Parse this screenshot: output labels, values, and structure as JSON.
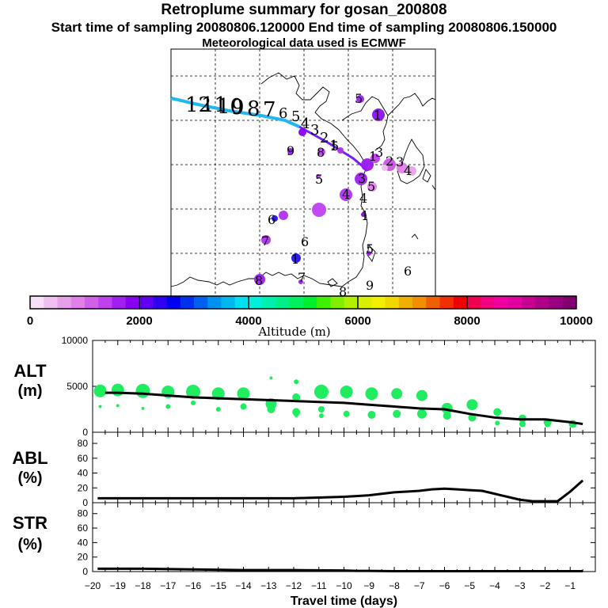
{
  "header": {
    "title": "Retroplume summary for gosan_200808",
    "line2": "Start time of sampling 20080806.120000     End time of sampling 20080806.150000",
    "line3": "Meteorological data used is ECMWF"
  },
  "colorbar": {
    "ticks": [
      "0",
      "2000",
      "4000",
      "6000",
      "8000",
      "10000"
    ],
    "label": "Altitude (m)",
    "colors": [
      "#f7e0f7",
      "#f0c0f0",
      "#e8a0e8",
      "#e080e8",
      "#d060e8",
      "#c040f0",
      "#a020f0",
      "#8800f0",
      "#6000f0",
      "#3000f0",
      "#0000f0",
      "#0030f0",
      "#0060f0",
      "#0090f0",
      "#00b8f0",
      "#00e0f0",
      "#00f0d8",
      "#00f0b0",
      "#00f088",
      "#00f060",
      "#00f030",
      "#40f000",
      "#80f000",
      "#b0f000",
      "#d8f000",
      "#f0f000",
      "#f0d800",
      "#f0b000",
      "#f09000",
      "#f06000",
      "#f03000",
      "#f00000",
      "#f00050",
      "#f00080",
      "#f000a0",
      "#e000a0",
      "#c80090",
      "#b00088",
      "#980080",
      "#800070"
    ]
  },
  "map": {
    "track_labels": [
      "12",
      "11",
      "10",
      "9",
      "8",
      "7",
      "6",
      "5",
      "4",
      "3",
      "2",
      "1"
    ],
    "cluster_labels": [
      "5",
      "1",
      "9",
      "8",
      "5",
      "3",
      "2",
      "3",
      "4",
      "1",
      "3",
      "5",
      "4",
      "4",
      "5",
      "1",
      "6",
      "7",
      "6",
      "1",
      "8",
      "7",
      "5",
      "9",
      "6",
      "8"
    ]
  },
  "panels": {
    "alt": {
      "label1": "ALT",
      "label2": "(m)",
      "ticks": [
        "10000",
        "5000",
        "0"
      ]
    },
    "abl": {
      "label1": "ABL",
      "label2": "(%)",
      "ticks": [
        "80",
        "60",
        "40",
        "20",
        "0"
      ]
    },
    "str": {
      "label1": "STR",
      "label2": "(%)",
      "ticks": [
        "80",
        "60",
        "40",
        "20",
        "0"
      ]
    },
    "xticks": [
      "−20",
      "−19",
      "−18",
      "−17",
      "−16",
      "−15",
      "−14",
      "−13",
      "−12",
      "−11",
      "−10",
      "−9",
      "−8",
      "−7",
      "−6",
      "−5",
      "−4",
      "−3",
      "−2",
      "−1"
    ],
    "xlabel": "Travel time (days)"
  },
  "chart_data": [
    {
      "type": "line",
      "name": "ALT",
      "ylabel": "ALT (m)",
      "xlabel": "Travel time (days)",
      "xlim": [
        -20,
        0
      ],
      "ylim": [
        0,
        10000
      ],
      "x": [
        -19.5,
        -19,
        -18,
        -17,
        -16,
        -15,
        -14,
        -13,
        -12,
        -11,
        -10,
        -9,
        -8,
        -7,
        -6,
        -5,
        -4,
        -3,
        -2,
        -1,
        -0.5
      ],
      "values": [
        4300,
        4300,
        4200,
        4000,
        3800,
        3700,
        3600,
        3500,
        3400,
        3300,
        3200,
        3000,
        2800,
        2600,
        2500,
        2000,
        1600,
        1400,
        1400,
        1100,
        900
      ],
      "scatter_color": "#20ec60",
      "cluster_points": [
        {
          "x": -19.7,
          "y": 4500,
          "s": 8
        },
        {
          "x": -19,
          "y": 4600,
          "s": 8
        },
        {
          "x": -18,
          "y": 4500,
          "s": 9
        },
        {
          "x": -17,
          "y": 4400,
          "s": 8
        },
        {
          "x": -16,
          "y": 4400,
          "s": 9
        },
        {
          "x": -15,
          "y": 4200,
          "s": 8
        },
        {
          "x": -14,
          "y": 4200,
          "s": 8
        },
        {
          "x": -12.9,
          "y": 3100,
          "s": 7
        },
        {
          "x": -11.9,
          "y": 3800,
          "s": 5
        },
        {
          "x": -10.9,
          "y": 4400,
          "s": 9
        },
        {
          "x": -9.9,
          "y": 4400,
          "s": 8
        },
        {
          "x": -8.9,
          "y": 4200,
          "s": 8
        },
        {
          "x": -7.9,
          "y": 4200,
          "s": 7
        },
        {
          "x": -6.9,
          "y": 4000,
          "s": 7
        },
        {
          "x": -5.9,
          "y": 2600,
          "s": 7
        },
        {
          "x": -4.9,
          "y": 3000,
          "s": 7
        },
        {
          "x": -3.9,
          "y": 2200,
          "s": 5
        },
        {
          "x": -2.9,
          "y": 1500,
          "s": 5
        },
        {
          "x": -1.9,
          "y": 1100,
          "s": 5
        },
        {
          "x": -0.9,
          "y": 900,
          "s": 5
        },
        {
          "x": -19.7,
          "y": 2800,
          "s": 2
        },
        {
          "x": -19,
          "y": 2900,
          "s": 2
        },
        {
          "x": -18,
          "y": 2600,
          "s": 2
        },
        {
          "x": -17,
          "y": 2800,
          "s": 3
        },
        {
          "x": -16,
          "y": 3200,
          "s": 3
        },
        {
          "x": -15,
          "y": 2500,
          "s": 3
        },
        {
          "x": -14,
          "y": 2800,
          "s": 4
        },
        {
          "x": -12.9,
          "y": 2500,
          "s": 5
        },
        {
          "x": -12.9,
          "y": 5900,
          "s": 2
        },
        {
          "x": -11.9,
          "y": 2200,
          "s": 5
        },
        {
          "x": -11.9,
          "y": 1900,
          "s": 3
        },
        {
          "x": -11.9,
          "y": 5500,
          "s": 3
        },
        {
          "x": -10.9,
          "y": 2500,
          "s": 4
        },
        {
          "x": -10.9,
          "y": 1800,
          "s": 3
        },
        {
          "x": -9.9,
          "y": 2000,
          "s": 4
        },
        {
          "x": -8.9,
          "y": 1900,
          "s": 5
        },
        {
          "x": -7.9,
          "y": 2000,
          "s": 5
        },
        {
          "x": -6.9,
          "y": 2000,
          "s": 6
        },
        {
          "x": -5.9,
          "y": 1800,
          "s": 5
        },
        {
          "x": -4.9,
          "y": 1600,
          "s": 5
        },
        {
          "x": -3.9,
          "y": 1000,
          "s": 3
        },
        {
          "x": -2.9,
          "y": 900,
          "s": 4
        },
        {
          "x": -1.9,
          "y": 900,
          "s": 4
        },
        {
          "x": -0.9,
          "y": 1000,
          "s": 3
        }
      ]
    },
    {
      "type": "line",
      "name": "ABL",
      "ylabel": "ABL (%)",
      "xlim": [
        -20,
        0
      ],
      "ylim": [
        0,
        95
      ],
      "x": [
        -19.8,
        -18,
        -16,
        -14,
        -12,
        -11,
        -10,
        -9.5,
        -9,
        -8.5,
        -8,
        -7.5,
        -7,
        -6.5,
        -6,
        -5.5,
        -5,
        -4.5,
        -4,
        -3.5,
        -3,
        -2.5,
        -2,
        -1.5,
        -1,
        -0.5
      ],
      "values": [
        6,
        6,
        6,
        6,
        6,
        7,
        8,
        9,
        10,
        12,
        14,
        15,
        16,
        18,
        19,
        18,
        17,
        16,
        12,
        8,
        4,
        2,
        2,
        2,
        15,
        30
      ]
    },
    {
      "type": "line",
      "name": "STR",
      "ylabel": "STR (%)",
      "xlim": [
        -20,
        0
      ],
      "ylim": [
        0,
        95
      ],
      "x": [
        -19.8,
        -18,
        -16,
        -14,
        -12,
        -10,
        -9.5,
        -9,
        -8,
        -6,
        -4,
        -2,
        -1,
        -0.5
      ],
      "values": [
        4,
        4,
        3,
        2,
        2,
        1.5,
        1,
        1,
        0.5,
        0.5,
        0.5,
        0.5,
        0.5,
        0.5
      ]
    }
  ]
}
